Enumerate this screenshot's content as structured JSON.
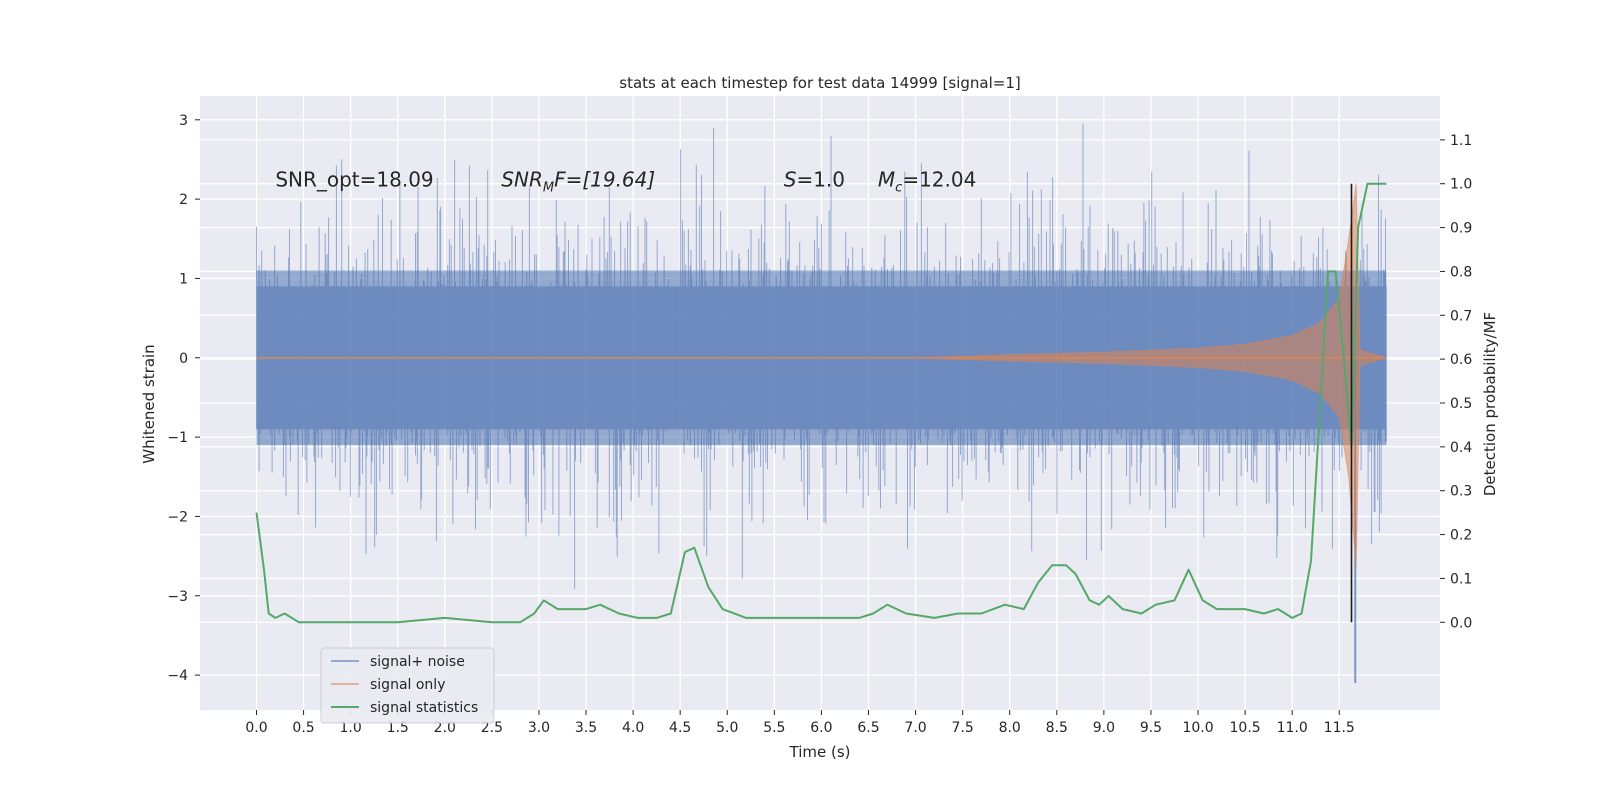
{
  "chart_data": {
    "type": "line",
    "title": "stats at each timestep for test data 14999 [signal=1]",
    "xlabel": "Time (s)",
    "ylabel_left": "Whitened strain",
    "ylabel_right": "Detection probability/MF",
    "xlim": [
      -0.6,
      12.57
    ],
    "ylim_left": [
      -4.44,
      3.3
    ],
    "ylim_right": [
      -0.2,
      1.2
    ],
    "x_ticks": [
      0.0,
      0.5,
      1.0,
      1.5,
      2.0,
      2.5,
      3.0,
      3.5,
      4.0,
      4.5,
      5.0,
      5.5,
      6.0,
      6.5,
      7.0,
      7.5,
      8.0,
      8.5,
      9.0,
      9.5,
      10.0,
      10.5,
      11.0,
      11.5
    ],
    "x_tick_labels": [
      "0.0",
      "0.5",
      "1.0",
      "1.5",
      "2.0",
      "2.5",
      "3.0",
      "3.5",
      "4.0",
      "4.5",
      "5.0",
      "5.5",
      "6.0",
      "6.5",
      "7.0",
      "7.5",
      "8.0",
      "8.5",
      "9.0",
      "9.5",
      "10.0",
      "10.5",
      "11.0",
      "11.5"
    ],
    "y_left_ticks": [
      3,
      2,
      1,
      0,
      -1,
      -2,
      -3,
      -4
    ],
    "y_left_tick_labels": [
      "3",
      "2",
      "1",
      "0",
      "−1",
      "−2",
      "−3",
      "−4"
    ],
    "y_right_ticks": [
      1.1,
      1.0,
      0.9,
      0.8,
      0.7,
      0.6,
      0.5,
      0.4,
      0.3,
      0.2,
      0.1,
      0.0
    ],
    "y_right_tick_labels": [
      "1.1",
      "1.0",
      "0.9",
      "0.8",
      "0.7",
      "0.6",
      "0.5",
      "0.4",
      "0.3",
      "0.2",
      "0.1",
      "0.0"
    ],
    "grid": true,
    "legend_position": "lower-left",
    "series": [
      {
        "name": "signal+ noise",
        "axis": "left",
        "color": "#4c72b0",
        "x_range": [
          0.0,
          12.0
        ],
        "envelope": {
          "upper_typical": 1.1,
          "upper_peak": 2.95,
          "lower_typical": -1.1,
          "lower_peak": -4.1
        }
      },
      {
        "name": "signal only",
        "axis": "left",
        "color": "#dd8452",
        "x_range": [
          0.0,
          12.0
        ],
        "envelope_points": [
          [
            0.0,
            0.0
          ],
          [
            7.0,
            0.0
          ],
          [
            8.0,
            0.04
          ],
          [
            9.0,
            0.07
          ],
          [
            10.0,
            0.12
          ],
          [
            10.5,
            0.17
          ],
          [
            11.0,
            0.28
          ],
          [
            11.3,
            0.45
          ],
          [
            11.5,
            0.75
          ],
          [
            11.6,
            1.5
          ],
          [
            11.68,
            2.2
          ],
          [
            11.72,
            0.1
          ],
          [
            12.0,
            0.0
          ]
        ]
      },
      {
        "name": "signal statistics",
        "axis": "right",
        "color": "#55a868",
        "points": [
          [
            0.0,
            0.25
          ],
          [
            0.08,
            0.12
          ],
          [
            0.13,
            0.02
          ],
          [
            0.2,
            0.01
          ],
          [
            0.3,
            0.02
          ],
          [
            0.45,
            0.0
          ],
          [
            0.6,
            0.0
          ],
          [
            1.0,
            0.0
          ],
          [
            1.5,
            0.0
          ],
          [
            2.0,
            0.01
          ],
          [
            2.5,
            0.0
          ],
          [
            2.8,
            0.0
          ],
          [
            2.95,
            0.02
          ],
          [
            3.05,
            0.05
          ],
          [
            3.2,
            0.03
          ],
          [
            3.35,
            0.03
          ],
          [
            3.5,
            0.03
          ],
          [
            3.65,
            0.04
          ],
          [
            3.85,
            0.02
          ],
          [
            4.05,
            0.01
          ],
          [
            4.25,
            0.01
          ],
          [
            4.4,
            0.02
          ],
          [
            4.55,
            0.16
          ],
          [
            4.65,
            0.17
          ],
          [
            4.8,
            0.08
          ],
          [
            4.95,
            0.03
          ],
          [
            5.2,
            0.01
          ],
          [
            5.5,
            0.01
          ],
          [
            6.0,
            0.01
          ],
          [
            6.4,
            0.01
          ],
          [
            6.55,
            0.02
          ],
          [
            6.7,
            0.04
          ],
          [
            6.9,
            0.02
          ],
          [
            7.2,
            0.01
          ],
          [
            7.45,
            0.02
          ],
          [
            7.7,
            0.02
          ],
          [
            7.95,
            0.04
          ],
          [
            8.15,
            0.03
          ],
          [
            8.3,
            0.09
          ],
          [
            8.45,
            0.13
          ],
          [
            8.6,
            0.13
          ],
          [
            8.7,
            0.11
          ],
          [
            8.85,
            0.05
          ],
          [
            8.95,
            0.04
          ],
          [
            9.05,
            0.06
          ],
          [
            9.2,
            0.03
          ],
          [
            9.4,
            0.02
          ],
          [
            9.55,
            0.04
          ],
          [
            9.75,
            0.05
          ],
          [
            9.9,
            0.12
          ],
          [
            10.05,
            0.05
          ],
          [
            10.2,
            0.03
          ],
          [
            10.5,
            0.03
          ],
          [
            10.7,
            0.02
          ],
          [
            10.85,
            0.03
          ],
          [
            11.0,
            0.01
          ],
          [
            11.1,
            0.02
          ],
          [
            11.2,
            0.14
          ],
          [
            11.3,
            0.5
          ],
          [
            11.38,
            0.8
          ],
          [
            11.46,
            0.8
          ],
          [
            11.55,
            0.6
          ],
          [
            11.63,
            0.4
          ],
          [
            11.7,
            0.9
          ],
          [
            11.8,
            1.0
          ],
          [
            11.9,
            1.0
          ],
          [
            12.0,
            1.0
          ]
        ]
      }
    ],
    "vertical_line": {
      "x": 11.63,
      "y_from": 0.0,
      "y_to": 1.0,
      "axis": "right",
      "color": "#1a1a1a"
    },
    "annotations": [
      {
        "text": "SNR_opt=18.09",
        "x": 0.2,
        "y": 2.25,
        "italic": false
      },
      {
        "text": "SNR_MF=[19.64]",
        "x": 2.6,
        "y": 2.25,
        "italic": true
      },
      {
        "text": "S=1.0",
        "x": 5.6,
        "y": 2.25,
        "italic": true
      },
      {
        "text": "M_c=12.04",
        "x": 6.6,
        "y": 2.25,
        "italic": true
      }
    ]
  }
}
